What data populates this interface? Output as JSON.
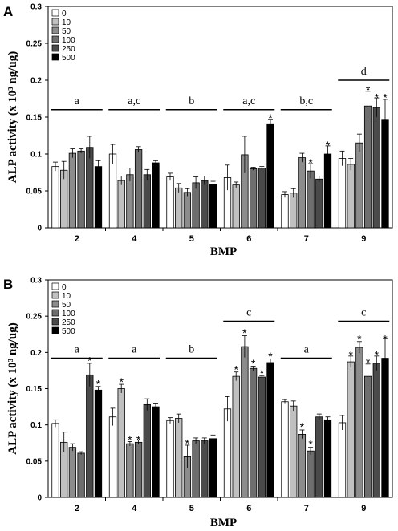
{
  "series_colors": [
    "#ffffff",
    "#c0c0c0",
    "#8c8c8c",
    "#6e6e6e",
    "#4a4a4a",
    "#000000"
  ],
  "chart_data": [
    {
      "type": "bar",
      "panel_label": "A",
      "xlabel": "BMP",
      "ylabel": "ALP activity (x 10³ ng/ug)",
      "ylim": [
        0,
        0.3
      ],
      "yticks": [
        "0",
        "0.05",
        "0.1",
        "0.15",
        "0.2",
        "0.25",
        "0.3"
      ],
      "categories": [
        "2",
        "4",
        "5",
        "6",
        "7",
        "9"
      ],
      "legend_placement": "top-left",
      "series": [
        {
          "name": "0",
          "values": [
            0.083,
            0.1,
            0.069,
            0.068,
            0.045,
            0.094
          ],
          "errors": [
            0.006,
            0.013,
            0.005,
            0.017,
            0.004,
            0.01
          ]
        },
        {
          "name": "10",
          "values": [
            0.078,
            0.064,
            0.054,
            0.058,
            0.047,
            0.086
          ],
          "errors": [
            0.012,
            0.006,
            0.006,
            0.004,
            0.006,
            0.008
          ]
        },
        {
          "name": "50",
          "values": [
            0.101,
            0.072,
            0.048,
            0.099,
            0.095,
            0.115
          ],
          "errors": [
            0.006,
            0.009,
            0.005,
            0.025,
            0.006,
            0.012
          ]
        },
        {
          "name": "100",
          "values": [
            0.104,
            0.106,
            0.061,
            0.08,
            0.077,
            0.165
          ],
          "errors": [
            0.003,
            0.004,
            0.008,
            0.002,
            0.01,
            0.02
          ]
        },
        {
          "name": "250",
          "values": [
            0.109,
            0.072,
            0.064,
            0.081,
            0.066,
            0.163
          ],
          "errors": [
            0.015,
            0.007,
            0.006,
            0.002,
            0.004,
            0.013
          ]
        },
        {
          "name": "500",
          "values": [
            0.083,
            0.088,
            0.059,
            0.141,
            0.1,
            0.147
          ],
          "errors": [
            0.008,
            0.003,
            0.004,
            0.006,
            0.011,
            0.027
          ]
        }
      ],
      "group_labels": [
        "a",
        "a,c",
        "b",
        "a,c",
        "b,c",
        "d"
      ],
      "group_label_y": [
        0.16,
        0.16,
        0.16,
        0.16,
        0.16,
        0.2
      ],
      "significance": [
        {
          "category": 3,
          "series": 5,
          "text": "*",
          "y": 0.152
        },
        {
          "category": 4,
          "series": 3,
          "text": "*",
          "y": 0.092
        },
        {
          "category": 4,
          "series": 5,
          "text": "*",
          "y": 0.115
        },
        {
          "category": 5,
          "series": 3,
          "text": "*",
          "y": 0.19
        },
        {
          "category": 5,
          "series": 4,
          "text": "*",
          "y": 0.18
        },
        {
          "category": 5,
          "series": 5,
          "text": "*",
          "y": 0.18
        }
      ]
    },
    {
      "type": "bar",
      "panel_label": "B",
      "xlabel": "BMP",
      "ylabel": "ALP activity (x 10³ ng/ug)",
      "ylim": [
        0,
        0.3
      ],
      "yticks": [
        "0",
        "0.05",
        "0.1",
        "0.15",
        "0.2",
        "0.25",
        "0.3"
      ],
      "categories": [
        "2",
        "4",
        "5",
        "6",
        "7",
        "9"
      ],
      "legend_placement": "top-left",
      "series": [
        {
          "name": "0",
          "values": [
            0.102,
            0.111,
            0.106,
            0.122,
            0.132,
            0.103
          ],
          "errors": [
            0.005,
            0.012,
            0.004,
            0.017,
            0.003,
            0.01
          ]
        },
        {
          "name": "10",
          "values": [
            0.076,
            0.15,
            0.109,
            0.167,
            0.126,
            0.187
          ],
          "errors": [
            0.014,
            0.006,
            0.006,
            0.006,
            0.007,
            0.008
          ]
        },
        {
          "name": "50",
          "values": [
            0.069,
            0.074,
            0.056,
            0.208,
            0.087,
            0.207
          ],
          "errors": [
            0.005,
            0.003,
            0.016,
            0.015,
            0.006,
            0.008
          ]
        },
        {
          "name": "100",
          "values": [
            0.061,
            0.076,
            0.078,
            0.178,
            0.064,
            0.167
          ],
          "errors": [
            0.002,
            0.003,
            0.004,
            0.003,
            0.005,
            0.017
          ]
        },
        {
          "name": "250",
          "values": [
            0.169,
            0.128,
            0.078,
            0.166,
            0.111,
            0.185
          ],
          "errors": [
            0.016,
            0.008,
            0.004,
            0.002,
            0.004,
            0.01
          ]
        },
        {
          "name": "500",
          "values": [
            0.148,
            0.125,
            0.081,
            0.186,
            0.107,
            0.192
          ],
          "errors": [
            0.005,
            0.004,
            0.005,
            0.005,
            0.004,
            0.027
          ]
        }
      ],
      "group_labels": [
        "a",
        "a",
        "b",
        "c",
        "a",
        "c"
      ],
      "group_label_y": [
        0.192,
        0.192,
        0.192,
        0.243,
        0.192,
        0.243
      ],
      "significance": [
        {
          "category": 0,
          "series": 4,
          "text": "*",
          "y": 0.192
        },
        {
          "category": 0,
          "series": 5,
          "text": "*",
          "y": 0.16
        },
        {
          "category": 1,
          "series": 1,
          "text": "*",
          "y": 0.163
        },
        {
          "category": 1,
          "series": 2,
          "text": "*",
          "y": 0.083
        },
        {
          "category": 1,
          "series": 3,
          "text": "*",
          "y": 0.083
        },
        {
          "category": 2,
          "series": 2,
          "text": "*",
          "y": 0.078
        },
        {
          "category": 3,
          "series": 1,
          "text": "*",
          "y": 0.18
        },
        {
          "category": 3,
          "series": 2,
          "text": "*",
          "y": 0.23
        },
        {
          "category": 3,
          "series": 3,
          "text": "*",
          "y": 0.188
        },
        {
          "category": 3,
          "series": 4,
          "text": "*",
          "y": 0.175
        },
        {
          "category": 3,
          "series": 5,
          "text": "*",
          "y": 0.198
        },
        {
          "category": 4,
          "series": 2,
          "text": "*",
          "y": 0.101
        },
        {
          "category": 4,
          "series": 3,
          "text": "*",
          "y": 0.077
        },
        {
          "category": 5,
          "series": 1,
          "text": "*",
          "y": 0.2
        },
        {
          "category": 5,
          "series": 2,
          "text": "*",
          "y": 0.222
        },
        {
          "category": 5,
          "series": 3,
          "text": "*",
          "y": 0.19
        },
        {
          "category": 5,
          "series": 4,
          "text": "*",
          "y": 0.2
        },
        {
          "category": 5,
          "series": 5,
          "text": "*",
          "y": 0.222
        }
      ]
    }
  ]
}
